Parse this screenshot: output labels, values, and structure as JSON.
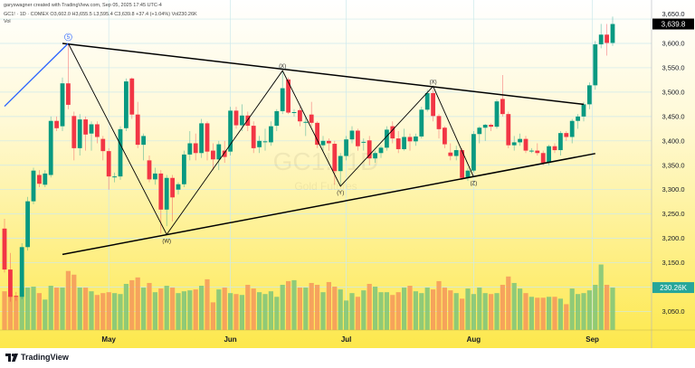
{
  "header": {
    "credit": "garyswagner created with TradingView.com, Sep 05, 2025 17:45 UTC-4",
    "symbol_line": "GC1! · 1D · COMEX  O3,602.0  H3,655.5  L3,595.4  C3,639.8  +37.4 (+1.04%)  Vol230.26K",
    "vol_label": "Vol"
  },
  "watermark": {
    "symbol": "GC1!, 1D",
    "name": "Gold Futures"
  },
  "footer": {
    "brand": "TradingView"
  },
  "colors": {
    "up": "#089981",
    "down": "#f23645",
    "vol_up": "#7cc47a",
    "vol_down": "#f5975a",
    "last_price_bg": "#000000",
    "vol_label_bg": "#26a69a",
    "wave_blue": "#2962ff"
  },
  "chart_data": {
    "type": "candlestick",
    "title": "GC1! · 1D · COMEX",
    "ylim": [
      3010,
      3665
    ],
    "y_ticks": [
      "3,050.0",
      "3,150.0",
      "3,200.0",
      "3,250.0",
      "3,300.0",
      "3,350.0",
      "3,400.0",
      "3,450.0",
      "3,500.0",
      "3,550.0",
      "3,600.0",
      "3,650.0"
    ],
    "y_tick_values": [
      3050,
      3150,
      3200,
      3250,
      3300,
      3350,
      3400,
      3450,
      3500,
      3550,
      3600,
      3650
    ],
    "x_ticks": [
      {
        "label": "May",
        "index": 18
      },
      {
        "label": "Jun",
        "index": 39
      },
      {
        "label": "Jul",
        "index": 59
      },
      {
        "label": "Aug",
        "index": 81
      },
      {
        "label": "Sep",
        "index": 101.5
      }
    ],
    "last_price_label": "3,639.8",
    "last_volume_label": "230.26K",
    "ohlc": [
      [
        3220,
        3240,
        3130,
        3136
      ],
      [
        3136,
        3170,
        3070,
        3080
      ],
      [
        3082,
        3090,
        3072,
        3080
      ],
      [
        3080,
        3190,
        3075,
        3182
      ],
      [
        3182,
        3285,
        3175,
        3276
      ],
      [
        3276,
        3345,
        3270,
        3339
      ],
      [
        3330,
        3340,
        3305,
        3312
      ],
      [
        3310,
        3340,
        3305,
        3333
      ],
      [
        3330,
        3450,
        3325,
        3441
      ],
      [
        3441,
        3450,
        3420,
        3426
      ],
      [
        3430,
        3530,
        3420,
        3518
      ],
      [
        3518,
        3600,
        3465,
        3474
      ],
      [
        3451,
        3460,
        3360,
        3385
      ],
      [
        3385,
        3455,
        3370,
        3444
      ],
      [
        3444,
        3450,
        3380,
        3413
      ],
      [
        3415,
        3440,
        3380,
        3434
      ],
      [
        3434,
        3440,
        3395,
        3408
      ],
      [
        3404,
        3410,
        3360,
        3379
      ],
      [
        3379,
        3385,
        3300,
        3327
      ],
      [
        3327,
        3335,
        3315,
        3327
      ],
      [
        3327,
        3430,
        3320,
        3424
      ],
      [
        3426,
        3528,
        3420,
        3522
      ],
      [
        3528,
        3530,
        3445,
        3454
      ],
      [
        3454,
        3480,
        3385,
        3392
      ],
      [
        3392,
        3415,
        3360,
        3410
      ],
      [
        3360,
        3370,
        3315,
        3321
      ],
      [
        3321,
        3345,
        3310,
        3333
      ],
      [
        3333,
        3340,
        3210,
        3259
      ],
      [
        3259,
        3330,
        3225,
        3324
      ],
      [
        3324,
        3330,
        3235,
        3284
      ],
      [
        3300,
        3315,
        3290,
        3311
      ],
      [
        3311,
        3380,
        3305,
        3372
      ],
      [
        3372,
        3420,
        3360,
        3395
      ],
      [
        3395,
        3415,
        3360,
        3375
      ],
      [
        3375,
        3445,
        3365,
        3436
      ],
      [
        3436,
        3440,
        3360,
        3378
      ],
      [
        3380,
        3395,
        3340,
        3362
      ],
      [
        3362,
        3400,
        3340,
        3393
      ],
      [
        3380,
        3400,
        3355,
        3367
      ],
      [
        3378,
        3470,
        3370,
        3462
      ],
      [
        3462,
        3470,
        3425,
        3432
      ],
      [
        3432,
        3475,
        3420,
        3452
      ],
      [
        3452,
        3460,
        3420,
        3431
      ],
      [
        3431,
        3440,
        3375,
        3385
      ],
      [
        3387,
        3410,
        3375,
        3400
      ],
      [
        3399,
        3425,
        3380,
        3399
      ],
      [
        3397,
        3440,
        3390,
        3430
      ],
      [
        3431,
        3465,
        3420,
        3461
      ],
      [
        3461,
        3545,
        3455,
        3508
      ],
      [
        3526,
        3530,
        3455,
        3458
      ],
      [
        3459,
        3465,
        3450,
        3459
      ],
      [
        3463,
        3470,
        3430,
        3440
      ],
      [
        3439,
        3450,
        3410,
        3439
      ],
      [
        3454,
        3480,
        3430,
        3437
      ],
      [
        3437,
        3440,
        3385,
        3392
      ],
      [
        3391,
        3410,
        3380,
        3400
      ],
      [
        3400,
        3405,
        3380,
        3395
      ],
      [
        3394,
        3400,
        3310,
        3338
      ],
      [
        3338,
        3375,
        3310,
        3369
      ],
      [
        3369,
        3410,
        3360,
        3403
      ],
      [
        3403,
        3430,
        3395,
        3421
      ],
      [
        3421,
        3425,
        3380,
        3389
      ],
      [
        3398,
        3405,
        3380,
        3398
      ],
      [
        3401,
        3410,
        3350,
        3364
      ],
      [
        3364,
        3380,
        3355,
        3375
      ],
      [
        3375,
        3390,
        3365,
        3386
      ],
      [
        3386,
        3430,
        3380,
        3423
      ],
      [
        3430,
        3440,
        3395,
        3405
      ],
      [
        3405,
        3420,
        3375,
        3383
      ],
      [
        3383,
        3425,
        3380,
        3408
      ],
      [
        3408,
        3415,
        3380,
        3399
      ],
      [
        3399,
        3415,
        3390,
        3409
      ],
      [
        3409,
        3470,
        3405,
        3464
      ],
      [
        3464,
        3505,
        3460,
        3498
      ],
      [
        3498,
        3505,
        3440,
        3451
      ],
      [
        3451,
        3455,
        3405,
        3424
      ],
      [
        3427,
        3430,
        3385,
        3393
      ],
      [
        3376,
        3395,
        3360,
        3369
      ],
      [
        3369,
        3390,
        3360,
        3381
      ],
      [
        3381,
        3385,
        3320,
        3324
      ],
      [
        3324,
        3345,
        3318,
        3339
      ],
      [
        3339,
        3420,
        3335,
        3414
      ],
      [
        3414,
        3430,
        3395,
        3427
      ],
      [
        3427,
        3435,
        3400,
        3433
      ],
      [
        3433,
        3436,
        3420,
        3429
      ],
      [
        3429,
        3485,
        3425,
        3481
      ],
      [
        3486,
        3535,
        3450,
        3455
      ],
      [
        3455,
        3460,
        3385,
        3391
      ],
      [
        3391,
        3410,
        3380,
        3397
      ],
      [
        3397,
        3415,
        3390,
        3404
      ],
      [
        3404,
        3410,
        3375,
        3380
      ],
      [
        3380,
        3385,
        3375,
        3380
      ],
      [
        3380,
        3395,
        3370,
        3375
      ],
      [
        3375,
        3380,
        3350,
        3355
      ],
      [
        3355,
        3392,
        3350,
        3389
      ],
      [
        3389,
        3395,
        3375,
        3381
      ],
      [
        3381,
        3420,
        3370,
        3416
      ],
      [
        3416,
        3420,
        3400,
        3408
      ],
      [
        3408,
        3445,
        3395,
        3441
      ],
      [
        3441,
        3455,
        3425,
        3450
      ],
      [
        3450,
        3480,
        3440,
        3475
      ],
      [
        3475,
        3520,
        3465,
        3514
      ],
      [
        3514,
        3605,
        3505,
        3598
      ],
      [
        3598,
        3640,
        3590,
        3618
      ],
      [
        3618,
        3640,
        3575,
        3601
      ],
      [
        3601,
        3655,
        3595,
        3639.8
      ]
    ],
    "volume_k": [
      210,
      190,
      180,
      230,
      230,
      235,
      200,
      165,
      240,
      230,
      230,
      320,
      300,
      230,
      230,
      210,
      190,
      200,
      205,
      200,
      195,
      250,
      270,
      285,
      230,
      255,
      205,
      225,
      240,
      230,
      200,
      210,
      215,
      220,
      240,
      275,
      150,
      220,
      230,
      200,
      195,
      190,
      245,
      225,
      205,
      195,
      210,
      180,
      245,
      265,
      270,
      230,
      230,
      255,
      245,
      205,
      260,
      235,
      220,
      160,
      200,
      180,
      215,
      250,
      235,
      205,
      205,
      190,
      205,
      230,
      240,
      210,
      200,
      230,
      220,
      265,
      230,
      215,
      200,
      170,
      225,
      195,
      230,
      200,
      195,
      200,
      245,
      290,
      255,
      225,
      200,
      180,
      175,
      175,
      180,
      180,
      170,
      140,
      225,
      195,
      200,
      215,
      245,
      355,
      245,
      230
    ],
    "trendlines": [
      {
        "name": "upper-trendline",
        "from": {
          "index": 10,
          "price": 3600
        },
        "to": {
          "index": 100,
          "price": 3475
        }
      },
      {
        "name": "lower-trendline",
        "from": {
          "index": 10,
          "price": 3167
        },
        "to": {
          "index": 102,
          "price": 3374
        }
      }
    ],
    "wave_blue": [
      {
        "index": 0,
        "price": 3471
      },
      {
        "index": 11,
        "price": 3600
      }
    ],
    "wave_points": [
      {
        "index": 11,
        "price": 3600,
        "label": "5",
        "circled": true
      },
      {
        "index": 28,
        "price": 3208,
        "label": "(W)",
        "below": true
      },
      {
        "index": 48,
        "price": 3544,
        "label": "(X)",
        "below": false
      },
      {
        "index": 58,
        "price": 3307,
        "label": "(Y)",
        "below": true
      },
      {
        "index": 74,
        "price": 3512,
        "label": "(X)",
        "below": false
      },
      {
        "index": 81,
        "price": 3326,
        "label": "(Z)",
        "below": true
      }
    ]
  }
}
